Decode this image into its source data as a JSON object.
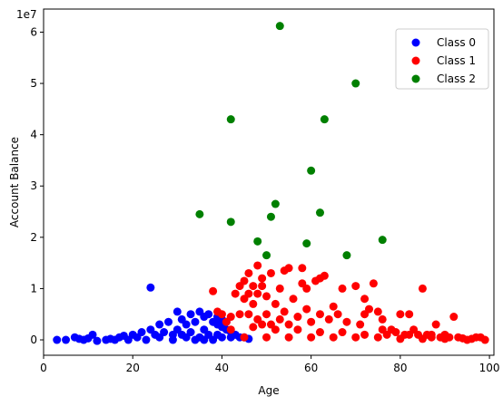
{
  "chart_data": {
    "type": "scatter",
    "xlabel": "Age",
    "ylabel": "Account Balance",
    "y_offset_text": "1e7",
    "xlim": [
      0,
      101
    ],
    "ylim": [
      -0.3,
      6.45
    ],
    "xticks": [
      0,
      20,
      40,
      60,
      80,
      100
    ],
    "xtick_labels": [
      "0",
      "20",
      "40",
      "60",
      "80",
      "100"
    ],
    "yticks": [
      0,
      1,
      2,
      3,
      4,
      5,
      6
    ],
    "ytick_labels": [
      "0",
      "1",
      "2",
      "3",
      "4",
      "5",
      "6"
    ],
    "grid": false,
    "legend_position": "top-right",
    "series": [
      {
        "name": "Class 0",
        "color": "#0000ff",
        "points": [
          [
            3,
            0.0
          ],
          [
            5,
            0.0
          ],
          [
            7,
            0.05
          ],
          [
            8,
            0.02
          ],
          [
            9,
            0.0
          ],
          [
            10,
            0.03
          ],
          [
            11,
            0.1
          ],
          [
            12,
            -0.02
          ],
          [
            14,
            0.0
          ],
          [
            15,
            0.02
          ],
          [
            16,
            0.0
          ],
          [
            17,
            0.05
          ],
          [
            18,
            0.08
          ],
          [
            19,
            0.0
          ],
          [
            20,
            0.1
          ],
          [
            21,
            0.05
          ],
          [
            22,
            0.15
          ],
          [
            23,
            0.0
          ],
          [
            24,
            1.02
          ],
          [
            24,
            0.2
          ],
          [
            25,
            0.1
          ],
          [
            26,
            0.3
          ],
          [
            27,
            0.15
          ],
          [
            28,
            0.35
          ],
          [
            29,
            0.1
          ],
          [
            30,
            0.2
          ],
          [
            30,
            0.55
          ],
          [
            31,
            0.4
          ],
          [
            32,
            0.3
          ],
          [
            33,
            0.5
          ],
          [
            33,
            0.15
          ],
          [
            34,
            0.35
          ],
          [
            35,
            0.55
          ],
          [
            35,
            0.05
          ],
          [
            36,
            0.45
          ],
          [
            36,
            0.2
          ],
          [
            37,
            0.5
          ],
          [
            37,
            0.1
          ],
          [
            38,
            0.35
          ],
          [
            38,
            0.0
          ],
          [
            39,
            0.3
          ],
          [
            39,
            0.1
          ],
          [
            40,
            0.25
          ],
          [
            40,
            0.05
          ],
          [
            41,
            0.2
          ],
          [
            42,
            0.15
          ],
          [
            42,
            0.05
          ],
          [
            43,
            0.1
          ],
          [
            44,
            0.05
          ],
          [
            45,
            0.05
          ],
          [
            46,
            0.02
          ],
          [
            31,
            0.1
          ],
          [
            34,
            0.0
          ],
          [
            36,
            0.0
          ],
          [
            29,
            0.0
          ],
          [
            26,
            0.05
          ],
          [
            32,
            0.05
          ],
          [
            40,
            0.4
          ],
          [
            39,
            0.45
          ],
          [
            41,
            0.35
          ]
        ]
      },
      {
        "name": "Class 1",
        "color": "#ff0000",
        "points": [
          [
            38,
            0.95
          ],
          [
            39,
            0.55
          ],
          [
            40,
            0.5
          ],
          [
            41,
            0.35
          ],
          [
            42,
            0.2
          ],
          [
            42,
            0.45
          ],
          [
            43,
            0.9
          ],
          [
            44,
            0.5
          ],
          [
            44,
            1.05
          ],
          [
            45,
            0.8
          ],
          [
            45,
            1.15
          ],
          [
            46,
            0.5
          ],
          [
            46,
            0.9
          ],
          [
            46,
            1.3
          ],
          [
            47,
            0.7
          ],
          [
            47,
            1.05
          ],
          [
            48,
            0.4
          ],
          [
            48,
            0.9
          ],
          [
            48,
            1.45
          ],
          [
            49,
            0.3
          ],
          [
            49,
            1.2
          ],
          [
            49,
            1.05
          ],
          [
            50,
            0.5
          ],
          [
            50,
            0.85
          ],
          [
            51,
            1.3
          ],
          [
            51,
            0.3
          ],
          [
            52,
            0.7
          ],
          [
            53,
            0.4
          ],
          [
            53,
            1.0
          ],
          [
            54,
            1.35
          ],
          [
            54,
            0.55
          ],
          [
            55,
            0.3
          ],
          [
            55,
            1.4
          ],
          [
            56,
            0.8
          ],
          [
            57,
            0.45
          ],
          [
            58,
            1.1
          ],
          [
            58,
            1.4
          ],
          [
            59,
            0.6
          ],
          [
            59,
            1.0
          ],
          [
            60,
            0.35
          ],
          [
            61,
            1.15
          ],
          [
            62,
            0.5
          ],
          [
            62,
            1.2
          ],
          [
            63,
            1.25
          ],
          [
            64,
            0.4
          ],
          [
            65,
            0.65
          ],
          [
            66,
            0.5
          ],
          [
            67,
            1.0
          ],
          [
            68,
            0.35
          ],
          [
            70,
            1.05
          ],
          [
            71,
            0.3
          ],
          [
            72,
            0.5
          ],
          [
            72,
            0.8
          ],
          [
            73,
            0.6
          ],
          [
            74,
            1.1
          ],
          [
            75,
            0.55
          ],
          [
            76,
            0.4
          ],
          [
            76,
            0.2
          ],
          [
            78,
            0.2
          ],
          [
            79,
            0.15
          ],
          [
            80,
            0.5
          ],
          [
            81,
            0.1
          ],
          [
            82,
            0.5
          ],
          [
            83,
            0.2
          ],
          [
            84,
            0.1
          ],
          [
            85,
            1.0
          ],
          [
            86,
            0.1
          ],
          [
            87,
            0.05
          ],
          [
            88,
            0.3
          ],
          [
            89,
            0.05
          ],
          [
            90,
            0.1
          ],
          [
            92,
            0.45
          ],
          [
            93,
            0.05
          ],
          [
            95,
            0.0
          ],
          [
            97,
            0.05
          ],
          [
            98,
            0.05
          ],
          [
            99,
            0.0
          ],
          [
            45,
            0.05
          ],
          [
            50,
            0.05
          ],
          [
            55,
            0.05
          ],
          [
            60,
            0.05
          ],
          [
            65,
            0.05
          ],
          [
            70,
            0.05
          ],
          [
            75,
            0.05
          ],
          [
            80,
            0.02
          ],
          [
            85,
            0.02
          ],
          [
            90,
            0.02
          ],
          [
            47,
            0.25
          ],
          [
            52,
            0.2
          ],
          [
            57,
            0.2
          ],
          [
            62,
            0.15
          ],
          [
            67,
            0.15
          ],
          [
            72,
            0.1
          ],
          [
            77,
            0.1
          ],
          [
            82,
            0.1
          ],
          [
            87,
            0.1
          ],
          [
            91,
            0.05
          ],
          [
            94,
            0.03
          ],
          [
            96,
            0.02
          ]
        ]
      },
      {
        "name": "Class 2",
        "color": "#008000",
        "points": [
          [
            35,
            2.45
          ],
          [
            42,
            4.3
          ],
          [
            42,
            2.3
          ],
          [
            48,
            1.92
          ],
          [
            50,
            1.65
          ],
          [
            51,
            2.4
          ],
          [
            52,
            2.65
          ],
          [
            53,
            6.12
          ],
          [
            59,
            1.88
          ],
          [
            60,
            3.3
          ],
          [
            62,
            2.48
          ],
          [
            63,
            4.3
          ],
          [
            68,
            1.65
          ],
          [
            70,
            5.0
          ],
          [
            76,
            1.95
          ]
        ]
      }
    ]
  }
}
